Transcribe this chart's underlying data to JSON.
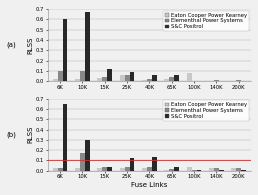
{
  "categories": [
    "6K",
    "10K",
    "15K",
    "25K",
    "40K",
    "65K",
    "100K",
    "140K",
    "200K"
  ],
  "series_a": {
    "Eaton Cooper Power Kearney": [
      0.025,
      0.025,
      0.03,
      0.055,
      0.015,
      0.02,
      0.08,
      0.005,
      0.005
    ],
    "Elementhal Power Systems": [
      0.1,
      0.1,
      0.04,
      0.06,
      0.025,
      0.04,
      0.005,
      0.015,
      0.015
    ],
    "S&C Positrol": [
      0.6,
      0.67,
      0.12,
      0.09,
      0.055,
      0.058,
      0.005,
      0.005,
      0.005
    ]
  },
  "series_b": {
    "Eaton Cooper Power Kearney": [
      0.03,
      0.03,
      0.03,
      0.025,
      0.025,
      0.01,
      0.04,
      0.025,
      0.025
    ],
    "Elementhal Power Systems": [
      0.03,
      0.17,
      0.04,
      0.04,
      0.04,
      0.02,
      0.01,
      0.03,
      0.03
    ],
    "S&C Positrol": [
      0.65,
      0.3,
      0.04,
      0.12,
      0.13,
      0.04,
      0.01,
      0.01,
      0.005
    ]
  },
  "colors": {
    "Eaton Cooper Power Kearney": "#c8c8c8",
    "Elementhal Power Systems": "#888888",
    "S&C Positrol": "#282828"
  },
  "xlabel": "Fuse Links",
  "ylim": [
    0,
    0.7
  ],
  "yticks": [
    0.0,
    0.1,
    0.2,
    0.3,
    0.4,
    0.5,
    0.6,
    0.7
  ],
  "redline_y": 0.1,
  "background": "#f0f0f0",
  "legend_fontsize": 3.8,
  "axis_fontsize": 5.0,
  "tick_fontsize": 3.8,
  "label_a": "(a)",
  "label_b": "(b)"
}
